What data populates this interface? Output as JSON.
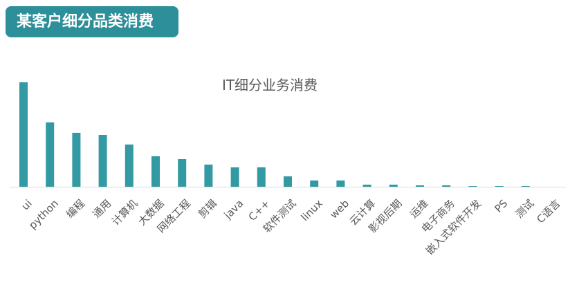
{
  "header": {
    "title": "某客户细分品类消费"
  },
  "colors": {
    "header_bg": "#2c8f99",
    "bar": "#3399a3",
    "axis": "#d9d9d9",
    "text": "#595959"
  },
  "chart_data": {
    "type": "bar",
    "title": "IT细分业务消费",
    "xlabel": "",
    "ylabel": "",
    "grid": false,
    "legend": "none",
    "categories": [
      "ui",
      "python",
      "编程",
      "通用",
      "计算机",
      "大数据",
      "网络工程",
      "剪辑",
      "java",
      "C++",
      "软件测试",
      "linux",
      "web",
      "云计算",
      "影视后期",
      "运维",
      "电子商务",
      "嵌入式软件开发",
      "PS",
      "测试",
      "C语言"
    ],
    "values": [
      151,
      93,
      78,
      75,
      61,
      44,
      40,
      32,
      28,
      28,
      15,
      9,
      9,
      3,
      3,
      2,
      2,
      1,
      1,
      1,
      0
    ],
    "ylim": [
      0,
      151
    ]
  }
}
